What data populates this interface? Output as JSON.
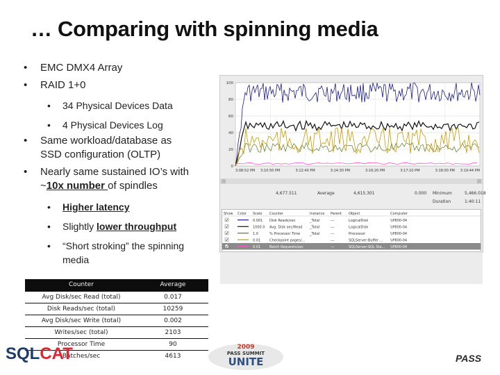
{
  "slide": {
    "title": "… Comparing with spinning media",
    "bullets": [
      {
        "text": "EMC DMX4 Array"
      },
      {
        "text": "RAID 1+0"
      },
      {
        "text": "34 Physical Devices Data"
      },
      {
        "text": "4 Physical Devices Log"
      },
      {
        "line1": "Same workload/database as",
        "line2": "SSD configuration (OLTP)"
      },
      {
        "line1": "Nearly same sustained IO’s with",
        "pre": "~",
        "emph": "10x number ",
        "post": "of spindles"
      },
      {
        "emph": "Higher latency"
      },
      {
        "pre": "Slightly ",
        "emph": "lower throughput"
      },
      {
        "line1": "“Short stroking” the spinning",
        "line2": "media"
      }
    ]
  },
  "perfmon": {
    "y_ticks": [
      "100",
      "80",
      "60",
      "40",
      "20",
      "0"
    ],
    "x_ticks": [
      "3:08:52 PM",
      "3:10:50 PM",
      "3:12:40 PM",
      "3:14:30 PM",
      "3:16:20 PM",
      "3:17:10 PM",
      "3:18:00 PM",
      "3:19:44 PM"
    ],
    "stats": {
      "last": "4,677.511",
      "average_label": "Average",
      "average": "4,615.301",
      "minimum": "0.000",
      "minimum_label": "Minimum",
      "maximum": "5,466.018",
      "duration_label": "Duration",
      "duration": "1:40:11"
    },
    "columns": [
      "Show",
      "Color",
      "Scale",
      "Counter",
      "Instance",
      "Parent",
      "Object",
      "Computer"
    ],
    "rows": [
      {
        "scale": "0.001",
        "counter": "Disk Reads/sec",
        "instance": "_Total",
        "parent": "---",
        "object": "LogicalDisk",
        "computer": "\\\\P800-04"
      },
      {
        "scale": "1000.0",
        "counter": "Avg. Disk sec/Read",
        "instance": "_Total",
        "parent": "---",
        "object": "LogicalDisk",
        "computer": "\\\\P800-04"
      },
      {
        "scale": "1.0",
        "counter": "% Processor Time",
        "instance": "_Total",
        "parent": "---",
        "object": "Processor",
        "computer": "\\\\P800-04"
      },
      {
        "scale": "0.01",
        "counter": "Checkpoint pages/...",
        "instance": "",
        "parent": "---",
        "object": "SQLServer:Buffer ...",
        "computer": "\\\\P800-04"
      },
      {
        "scale": "0.01",
        "counter": "Batch Requests/sec",
        "instance": "",
        "parent": "---",
        "object": "SQLServer:SQL Sta...",
        "computer": "\\\\P800-04"
      }
    ],
    "series_colors": [
      "#1a1a8a",
      "#111111",
      "#5a7a1a",
      "#cc9900",
      "#ff55cc"
    ]
  },
  "results": {
    "headers": [
      "Counter",
      "Average"
    ],
    "rows": [
      {
        "counter": "Avg Disk/sec Read (total)",
        "average": "0.017"
      },
      {
        "counter": "Disk Reads/sec (total)",
        "average": "10259"
      },
      {
        "counter": "Avg Disk/sec Write (total)",
        "average": "0.002"
      },
      {
        "counter": "Writes/sec (total)",
        "average": "2103"
      },
      {
        "counter": "Processor Time",
        "average": "90"
      },
      {
        "counter": "Batches/sec",
        "average": "4613"
      }
    ]
  },
  "footer": {
    "sql_logo_main": "SQL",
    "sql_logo_sub": "CAT",
    "pass_year": "2009",
    "pass_line": "PASS SUMMIT",
    "pass_word": "UNITE",
    "pass_brand": "PASS"
  }
}
